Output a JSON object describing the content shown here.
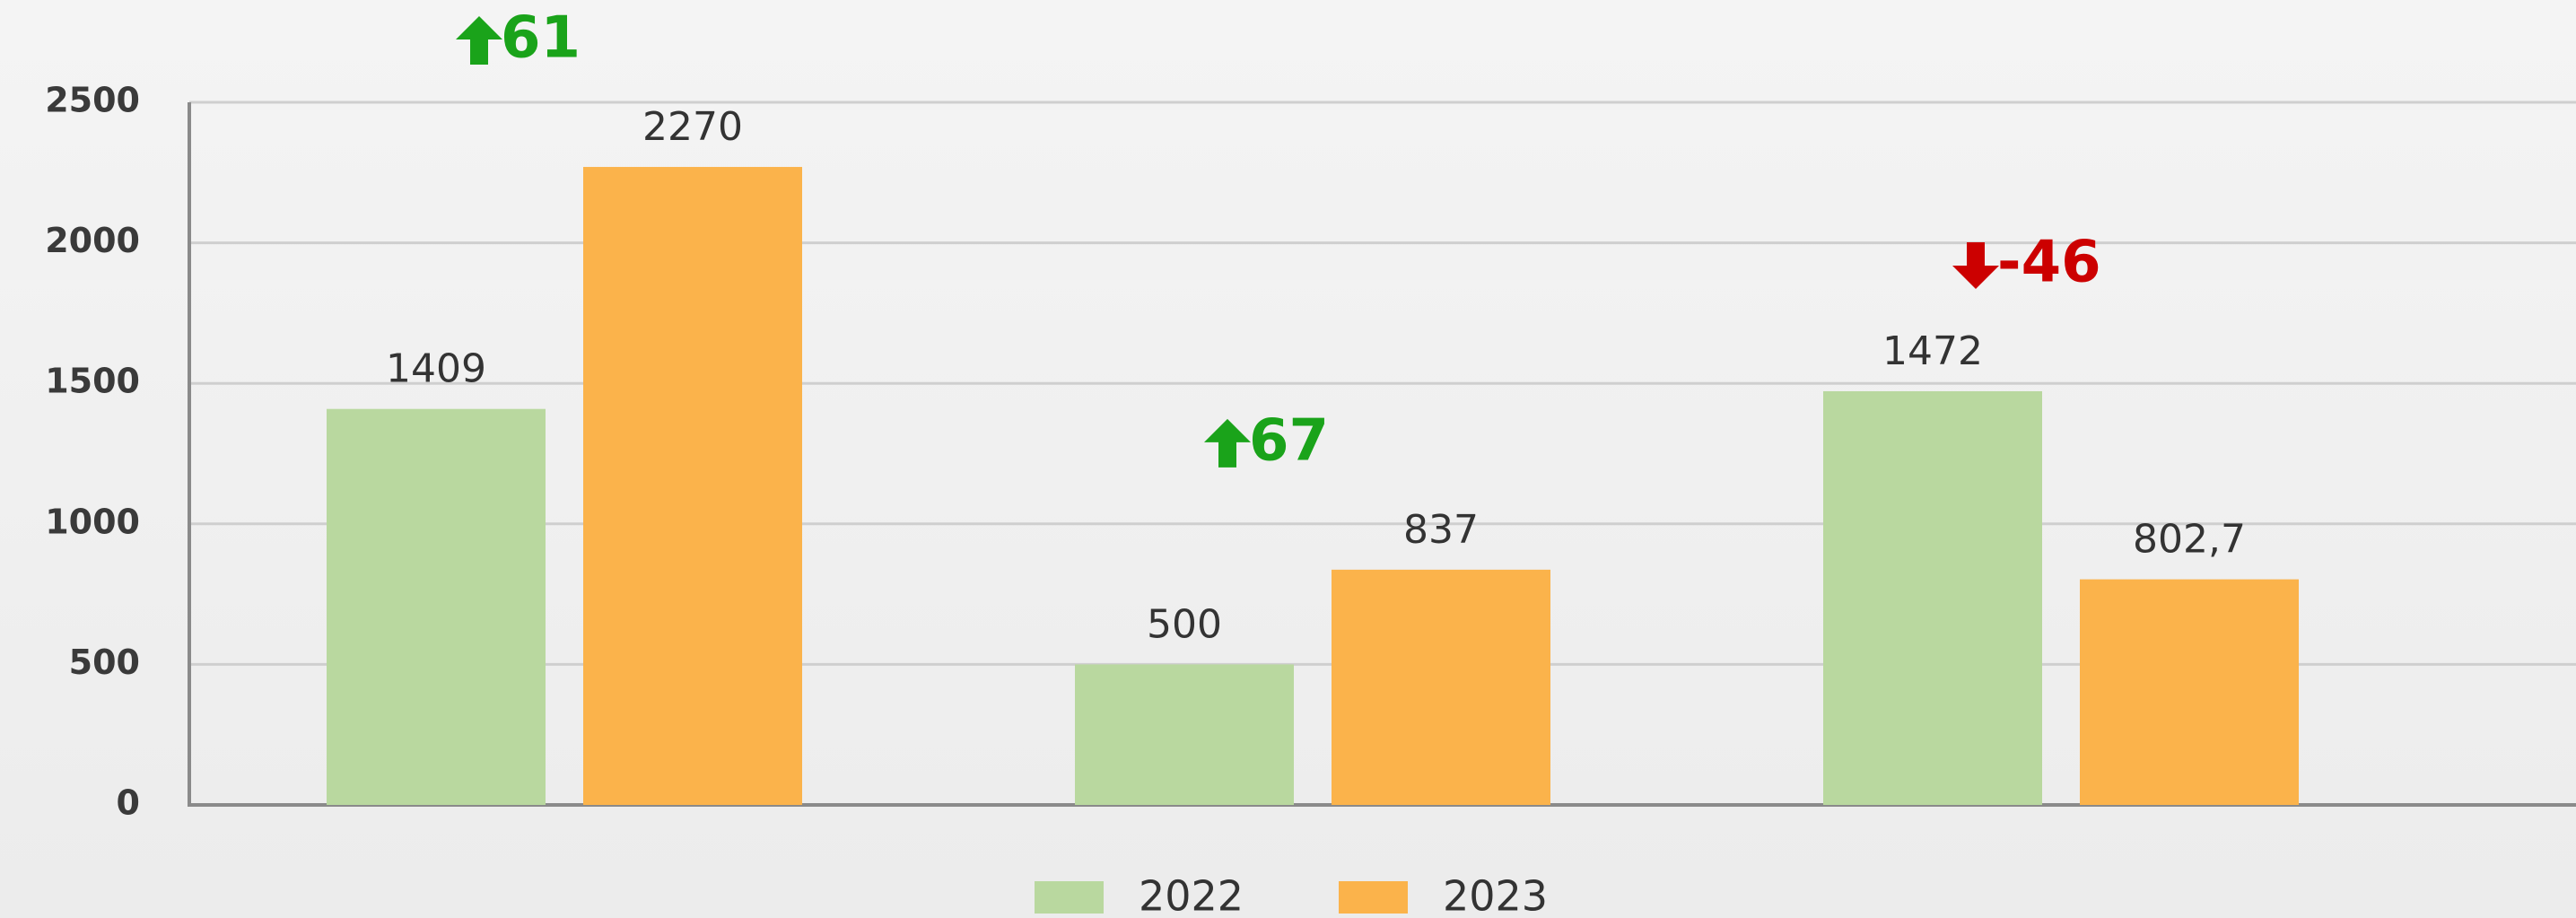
{
  "chart_data": {
    "type": "bar",
    "categories": [
      null,
      null,
      null
    ],
    "series": [
      {
        "name": "2022",
        "color": "#b9d89f",
        "values": [
          1409,
          500,
          1472
        ]
      },
      {
        "name": "2023",
        "color": "#fbb34b",
        "values": [
          2270,
          837,
          802.7
        ],
        "value_labels": [
          "2270",
          "837",
          "802,7"
        ]
      }
    ],
    "ylim": [
      0,
      2500
    ],
    "yticks": [
      0,
      500,
      1000,
      1500,
      2000,
      2500
    ],
    "grid": true,
    "legend": "bottom",
    "annotations": [
      {
        "text": "61",
        "color": "#1aa31a"
      },
      {
        "text": "67",
        "color": "#1aa31a"
      },
      {
        "text": "-46",
        "color": "#cc0000"
      }
    ]
  }
}
